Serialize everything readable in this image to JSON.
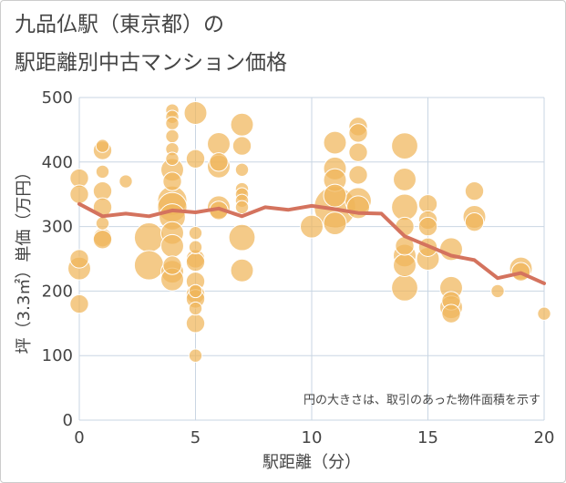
{
  "title_lines": [
    "九品仏駅（東京都）の",
    "駅距離別中古マンション価格"
  ],
  "colors": {
    "bubble": "#f0b55a",
    "bubble_stroke": "#ffffff",
    "line": "#d4735e",
    "grid": "#c9d6e3",
    "plot_bg": "#ffffff"
  },
  "chart_data": {
    "type": "scatter",
    "title": "九品仏駅（東京都）の駅距離別中古マンション価格",
    "xlabel": "駅距離（分）",
    "ylabel": "坪（3.3㎡）単価（万円）",
    "xlim": [
      0,
      20
    ],
    "ylim": [
      0,
      500
    ],
    "x_ticks": [
      0,
      5,
      10,
      15,
      20
    ],
    "y_ticks": [
      0,
      100,
      200,
      300,
      400,
      500
    ],
    "grid": true,
    "note": "円の大きさは、取引のあった物件面積を示す",
    "series": [
      {
        "kind": "bubble",
        "points": [
          {
            "x": 0,
            "y": 375,
            "s": 2
          },
          {
            "x": 0,
            "y": 350,
            "s": 2
          },
          {
            "x": 0,
            "y": 250,
            "s": 2
          },
          {
            "x": 0,
            "y": 235,
            "s": 3
          },
          {
            "x": 0,
            "y": 180,
            "s": 2
          },
          {
            "x": 1,
            "y": 425,
            "s": 1
          },
          {
            "x": 1,
            "y": 418,
            "s": 2
          },
          {
            "x": 1,
            "y": 385,
            "s": 1
          },
          {
            "x": 1,
            "y": 355,
            "s": 2
          },
          {
            "x": 1,
            "y": 330,
            "s": 2
          },
          {
            "x": 1,
            "y": 305,
            "s": 1
          },
          {
            "x": 1,
            "y": 283,
            "s": 2
          },
          {
            "x": 1,
            "y": 280,
            "s": 2
          },
          {
            "x": 2,
            "y": 370,
            "s": 1
          },
          {
            "x": 3,
            "y": 283,
            "s": 5
          },
          {
            "x": 3,
            "y": 240,
            "s": 5
          },
          {
            "x": 4,
            "y": 480,
            "s": 1
          },
          {
            "x": 4,
            "y": 470,
            "s": 1
          },
          {
            "x": 4,
            "y": 460,
            "s": 1
          },
          {
            "x": 4,
            "y": 440,
            "s": 1
          },
          {
            "x": 4,
            "y": 420,
            "s": 1
          },
          {
            "x": 4,
            "y": 405,
            "s": 1
          },
          {
            "x": 4,
            "y": 388,
            "s": 3
          },
          {
            "x": 4,
            "y": 370,
            "s": 2
          },
          {
            "x": 4,
            "y": 340,
            "s": 5
          },
          {
            "x": 4,
            "y": 330,
            "s": 5
          },
          {
            "x": 4,
            "y": 315,
            "s": 4
          },
          {
            "x": 4,
            "y": 290,
            "s": 3
          },
          {
            "x": 4,
            "y": 270,
            "s": 3
          },
          {
            "x": 4,
            "y": 240,
            "s": 2
          },
          {
            "x": 4,
            "y": 230,
            "s": 3
          },
          {
            "x": 4,
            "y": 218,
            "s": 3
          },
          {
            "x": 5,
            "y": 476,
            "s": 3
          },
          {
            "x": 5,
            "y": 405,
            "s": 2
          },
          {
            "x": 5,
            "y": 290,
            "s": 1
          },
          {
            "x": 5,
            "y": 268,
            "s": 1
          },
          {
            "x": 5,
            "y": 250,
            "s": 2
          },
          {
            "x": 5,
            "y": 245,
            "s": 2
          },
          {
            "x": 5,
            "y": 215,
            "s": 2
          },
          {
            "x": 5,
            "y": 200,
            "s": 1
          },
          {
            "x": 5,
            "y": 195,
            "s": 2
          },
          {
            "x": 5,
            "y": 188,
            "s": 2
          },
          {
            "x": 5,
            "y": 173,
            "s": 1
          },
          {
            "x": 5,
            "y": 150,
            "s": 2
          },
          {
            "x": 5,
            "y": 100,
            "s": 1
          },
          {
            "x": 6,
            "y": 428,
            "s": 3
          },
          {
            "x": 6,
            "y": 400,
            "s": 2
          },
          {
            "x": 6,
            "y": 393,
            "s": 3
          },
          {
            "x": 6,
            "y": 330,
            "s": 3
          },
          {
            "x": 6,
            "y": 325,
            "s": 2
          },
          {
            "x": 7,
            "y": 458,
            "s": 3
          },
          {
            "x": 7,
            "y": 425,
            "s": 2
          },
          {
            "x": 7,
            "y": 388,
            "s": 1
          },
          {
            "x": 7,
            "y": 358,
            "s": 1
          },
          {
            "x": 7,
            "y": 350,
            "s": 1
          },
          {
            "x": 7,
            "y": 340,
            "s": 1
          },
          {
            "x": 7,
            "y": 330,
            "s": 1
          },
          {
            "x": 7,
            "y": 283,
            "s": 4
          },
          {
            "x": 7,
            "y": 232,
            "s": 3
          },
          {
            "x": 10,
            "y": 300,
            "s": 3
          },
          {
            "x": 11,
            "y": 430,
            "s": 3
          },
          {
            "x": 11,
            "y": 390,
            "s": 3
          },
          {
            "x": 11,
            "y": 372,
            "s": 3
          },
          {
            "x": 11,
            "y": 348,
            "s": 3
          },
          {
            "x": 11,
            "y": 330,
            "s": 10
          },
          {
            "x": 11,
            "y": 305,
            "s": 3
          },
          {
            "x": 12,
            "y": 455,
            "s": 2
          },
          {
            "x": 12,
            "y": 445,
            "s": 2
          },
          {
            "x": 12,
            "y": 415,
            "s": 2
          },
          {
            "x": 12,
            "y": 380,
            "s": 2
          },
          {
            "x": 12,
            "y": 340,
            "s": 4
          },
          {
            "x": 12,
            "y": 330,
            "s": 3
          },
          {
            "x": 14,
            "y": 425,
            "s": 4
          },
          {
            "x": 14,
            "y": 373,
            "s": 3
          },
          {
            "x": 14,
            "y": 330,
            "s": 4
          },
          {
            "x": 14,
            "y": 300,
            "s": 2
          },
          {
            "x": 14,
            "y": 270,
            "s": 2
          },
          {
            "x": 14,
            "y": 255,
            "s": 3
          },
          {
            "x": 14,
            "y": 240,
            "s": 3
          },
          {
            "x": 14,
            "y": 205,
            "s": 4
          },
          {
            "x": 15,
            "y": 335,
            "s": 2
          },
          {
            "x": 15,
            "y": 310,
            "s": 2
          },
          {
            "x": 15,
            "y": 300,
            "s": 2
          },
          {
            "x": 15,
            "y": 268,
            "s": 2
          },
          {
            "x": 15,
            "y": 250,
            "s": 3
          },
          {
            "x": 16,
            "y": 265,
            "s": 3
          },
          {
            "x": 16,
            "y": 205,
            "s": 3
          },
          {
            "x": 16,
            "y": 185,
            "s": 2
          },
          {
            "x": 16,
            "y": 175,
            "s": 3
          },
          {
            "x": 16,
            "y": 165,
            "s": 2
          },
          {
            "x": 17,
            "y": 355,
            "s": 2
          },
          {
            "x": 17,
            "y": 315,
            "s": 3
          },
          {
            "x": 17,
            "y": 307,
            "s": 2
          },
          {
            "x": 18,
            "y": 200,
            "s": 1
          },
          {
            "x": 19,
            "y": 235,
            "s": 3
          },
          {
            "x": 19,
            "y": 230,
            "s": 2
          },
          {
            "x": 20,
            "y": 165,
            "s": 1
          }
        ]
      },
      {
        "kind": "line",
        "x": [
          0,
          1,
          2,
          3,
          4,
          5,
          6,
          7,
          8,
          9,
          10,
          11,
          12,
          13,
          14,
          15,
          16,
          17,
          18,
          19,
          20
        ],
        "y": [
          335,
          316,
          320,
          316,
          325,
          322,
          328,
          316,
          330,
          326,
          332,
          327,
          321,
          320,
          285,
          270,
          255,
          248,
          220,
          228,
          212
        ]
      }
    ]
  }
}
